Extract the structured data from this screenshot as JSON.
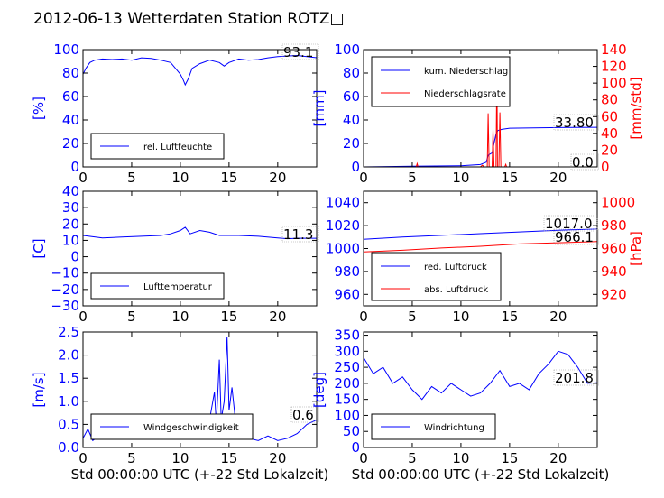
{
  "page": {
    "title": "2012-06-13 Wetterdaten Station ROTZ□"
  },
  "colors": {
    "blue": "#0000ff",
    "red": "#ff0000",
    "black": "#000000",
    "light_blue": "#8080ff"
  },
  "chart_data": [
    {
      "id": "humidity",
      "type": "line",
      "ylabel": "[%]",
      "ylim": [
        0,
        100
      ],
      "yticks": [
        "0",
        "20",
        "40",
        "60",
        "80",
        "100"
      ],
      "xlim": [
        0,
        24
      ],
      "xticks": [
        "0",
        "5",
        "10",
        "15",
        "20"
      ],
      "readout": "93.1",
      "series": [
        {
          "name": "rel. Luftfeuchte",
          "color": "#0000ff",
          "points": [
            [
              0,
              79
            ],
            [
              0.3,
              84
            ],
            [
              0.7,
              89
            ],
            [
              1.2,
              91
            ],
            [
              2,
              92
            ],
            [
              3,
              91.5
            ],
            [
              4,
              92
            ],
            [
              5,
              91
            ],
            [
              6,
              93
            ],
            [
              7,
              92.5
            ],
            [
              8,
              91
            ],
            [
              9,
              89
            ],
            [
              9.5,
              84
            ],
            [
              10,
              79
            ],
            [
              10.3,
              74
            ],
            [
              10.5,
              70
            ],
            [
              10.8,
              75
            ],
            [
              11.2,
              84
            ],
            [
              12,
              88
            ],
            [
              13,
              91
            ],
            [
              14,
              89
            ],
            [
              14.5,
              86
            ],
            [
              15,
              89
            ],
            [
              16,
              92
            ],
            [
              17,
              91
            ],
            [
              18,
              91.5
            ],
            [
              19,
              93
            ],
            [
              20,
              94
            ],
            [
              22,
              95
            ],
            [
              23,
              94
            ],
            [
              24,
              93.1
            ]
          ]
        }
      ]
    },
    {
      "id": "precip",
      "type": "line",
      "ylabel": "[mm]",
      "ylim": [
        0,
        100
      ],
      "yticks": [
        "0",
        "20",
        "40",
        "60",
        "80",
        "100"
      ],
      "ylabel2": "[mm/std]",
      "ylim2": [
        0,
        140
      ],
      "yticks2": [
        "0",
        "20",
        "40",
        "60",
        "80",
        "100",
        "120",
        "140"
      ],
      "xlim": [
        0,
        24
      ],
      "xticks": [
        "0",
        "5",
        "10",
        "15",
        "20"
      ],
      "readouts": [
        "33.80",
        "0.0"
      ],
      "series": [
        {
          "name": "kum. Niederschlag",
          "color": "#0000ff",
          "axis": "left",
          "points": [
            [
              0,
              0
            ],
            [
              5,
              0.5
            ],
            [
              10,
              1
            ],
            [
              12,
              2
            ],
            [
              12.6,
              4
            ],
            [
              12.8,
              10
            ],
            [
              13.2,
              12
            ],
            [
              13.4,
              20
            ],
            [
              13.6,
              28
            ],
            [
              13.8,
              31
            ],
            [
              14.2,
              32
            ],
            [
              15,
              33
            ],
            [
              20,
              33.5
            ],
            [
              24,
              33.8
            ]
          ]
        },
        {
          "name": "Niederschlagsrate",
          "color": "#ff0000",
          "axis": "right",
          "points": [
            [
              0,
              0
            ],
            [
              4,
              0
            ],
            [
              5.4,
              0
            ],
            [
              5.5,
              4
            ],
            [
              5.6,
              0
            ],
            [
              12,
              0
            ],
            [
              12.2,
              2
            ],
            [
              12.4,
              0
            ],
            [
              12.7,
              0
            ],
            [
              12.8,
              64
            ],
            [
              12.9,
              0
            ],
            [
              13.2,
              0
            ],
            [
              13.3,
              45
            ],
            [
              13.4,
              0
            ],
            [
              13.6,
              0
            ],
            [
              13.7,
              127
            ],
            [
              13.75,
              0
            ],
            [
              13.9,
              0
            ],
            [
              14,
              65
            ],
            [
              14.1,
              0
            ],
            [
              14.5,
              0
            ],
            [
              14.6,
              3
            ],
            [
              14.7,
              0
            ],
            [
              24,
              0
            ]
          ]
        }
      ]
    },
    {
      "id": "temperature",
      "type": "line",
      "ylabel": "[C]",
      "ylim": [
        -30,
        40
      ],
      "yticks": [
        "−30",
        "−20",
        "−10",
        "0",
        "10",
        "20",
        "30",
        "40"
      ],
      "xlim": [
        0,
        24
      ],
      "xticks": [
        "0",
        "5",
        "10",
        "15",
        "20"
      ],
      "readout": "11.3",
      "series": [
        {
          "name": "Lufttemperatur",
          "color": "#0000ff",
          "points": [
            [
              0,
              13
            ],
            [
              2,
              11.5
            ],
            [
              4,
              12
            ],
            [
              6,
              12.5
            ],
            [
              8,
              13
            ],
            [
              9,
              14
            ],
            [
              10,
              16
            ],
            [
              10.5,
              18
            ],
            [
              11,
              14
            ],
            [
              12,
              16
            ],
            [
              13,
              15
            ],
            [
              14,
              13
            ],
            [
              16,
              13
            ],
            [
              18,
              12.5
            ],
            [
              20,
              11.5
            ],
            [
              21,
              11
            ],
            [
              22,
              11.3
            ],
            [
              24,
              11.3
            ]
          ]
        }
      ]
    },
    {
      "id": "pressure",
      "type": "line",
      "ylabel": "",
      "ylim": [
        950,
        1050
      ],
      "yticks": [
        "960",
        "980",
        "1000",
        "1020",
        "1040"
      ],
      "ylabel2": "[hPa]",
      "ylim2": [
        910,
        1010
      ],
      "yticks2": [
        "920",
        "940",
        "960",
        "980",
        "1000"
      ],
      "xlim": [
        0,
        24
      ],
      "xticks": [
        "0",
        "5",
        "10",
        "15",
        "20"
      ],
      "readouts": [
        "1017.0",
        "966.1"
      ],
      "series": [
        {
          "name": "red. Luftdruck",
          "color": "#0000ff",
          "axis": "left",
          "points": [
            [
              0,
              1008
            ],
            [
              4,
              1010
            ],
            [
              8,
              1011.5
            ],
            [
              12,
              1013
            ],
            [
              16,
              1014.5
            ],
            [
              20,
              1016
            ],
            [
              24,
              1017
            ]
          ]
        },
        {
          "name": "abs. Luftdruck",
          "color": "#ff0000",
          "axis": "right",
          "points": [
            [
              0,
              957
            ],
            [
              4,
              958.5
            ],
            [
              8,
              960.5
            ],
            [
              12,
              962
            ],
            [
              16,
              964
            ],
            [
              20,
              965
            ],
            [
              24,
              966.1
            ]
          ]
        }
      ]
    },
    {
      "id": "wind_speed",
      "type": "line",
      "ylabel": "[m/s]",
      "ylim": [
        0,
        2.5
      ],
      "yticks": [
        "0.0",
        "0.5",
        "1.0",
        "1.5",
        "2.0",
        "2.5"
      ],
      "xlim": [
        0,
        24
      ],
      "xticks": [
        "0",
        "5",
        "10",
        "15",
        "20"
      ],
      "xlabel": "Std 00:00:00 UTC (+-22 Std Lokalzeit)",
      "readout": "0.6",
      "series": [
        {
          "name": "Windgeschwindigkeit",
          "color": "#0000ff",
          "points": [
            [
              0,
              0.2
            ],
            [
              0.5,
              0.4
            ],
            [
              1,
              0.15
            ],
            [
              2,
              0.3
            ],
            [
              3,
              0.2
            ],
            [
              4,
              0.35
            ],
            [
              5,
              0.25
            ],
            [
              6,
              0.3
            ],
            [
              7,
              0.2
            ],
            [
              8,
              0.3
            ],
            [
              9,
              0.4
            ],
            [
              10,
              0.35
            ],
            [
              11,
              0.5
            ],
            [
              12,
              0.4
            ],
            [
              13,
              0.6
            ],
            [
              13.5,
              1.2
            ],
            [
              13.7,
              0.5
            ],
            [
              14,
              1.9
            ],
            [
              14.2,
              0.6
            ],
            [
              14.5,
              1.0
            ],
            [
              14.8,
              2.4
            ],
            [
              15,
              0.8
            ],
            [
              15.3,
              1.3
            ],
            [
              15.7,
              0.5
            ],
            [
              16,
              0.3
            ],
            [
              17,
              0.2
            ],
            [
              18,
              0.15
            ],
            [
              19,
              0.25
            ],
            [
              20,
              0.15
            ],
            [
              21,
              0.2
            ],
            [
              22,
              0.3
            ],
            [
              23,
              0.5
            ],
            [
              24,
              0.6
            ]
          ]
        }
      ]
    },
    {
      "id": "wind_direction",
      "type": "line",
      "ylabel": "[deg]",
      "ylim": [
        0,
        360
      ],
      "yticks": [
        "0",
        "50",
        "100",
        "150",
        "200",
        "250",
        "300",
        "350"
      ],
      "xlim": [
        0,
        24
      ],
      "xticks": [
        "0",
        "5",
        "10",
        "15",
        "20"
      ],
      "xlabel": "Std 00:00:00 UTC (+-22 Std Lokalzeit)",
      "readout": "201.8",
      "series": [
        {
          "name": "Windrichtung",
          "color": "#0000ff",
          "points": [
            [
              0,
              280
            ],
            [
              1,
              230
            ],
            [
              2,
              250
            ],
            [
              3,
              200
            ],
            [
              4,
              220
            ],
            [
              5,
              180
            ],
            [
              6,
              150
            ],
            [
              7,
              190
            ],
            [
              8,
              170
            ],
            [
              9,
              200
            ],
            [
              10,
              180
            ],
            [
              11,
              160
            ],
            [
              12,
              170
            ],
            [
              13,
              200
            ],
            [
              14,
              240
            ],
            [
              15,
              190
            ],
            [
              16,
              200
            ],
            [
              17,
              180
            ],
            [
              18,
              230
            ],
            [
              19,
              260
            ],
            [
              20,
              300
            ],
            [
              21,
              290
            ],
            [
              22,
              250
            ],
            [
              23,
              200
            ],
            [
              24,
              201.8
            ]
          ]
        }
      ]
    }
  ]
}
